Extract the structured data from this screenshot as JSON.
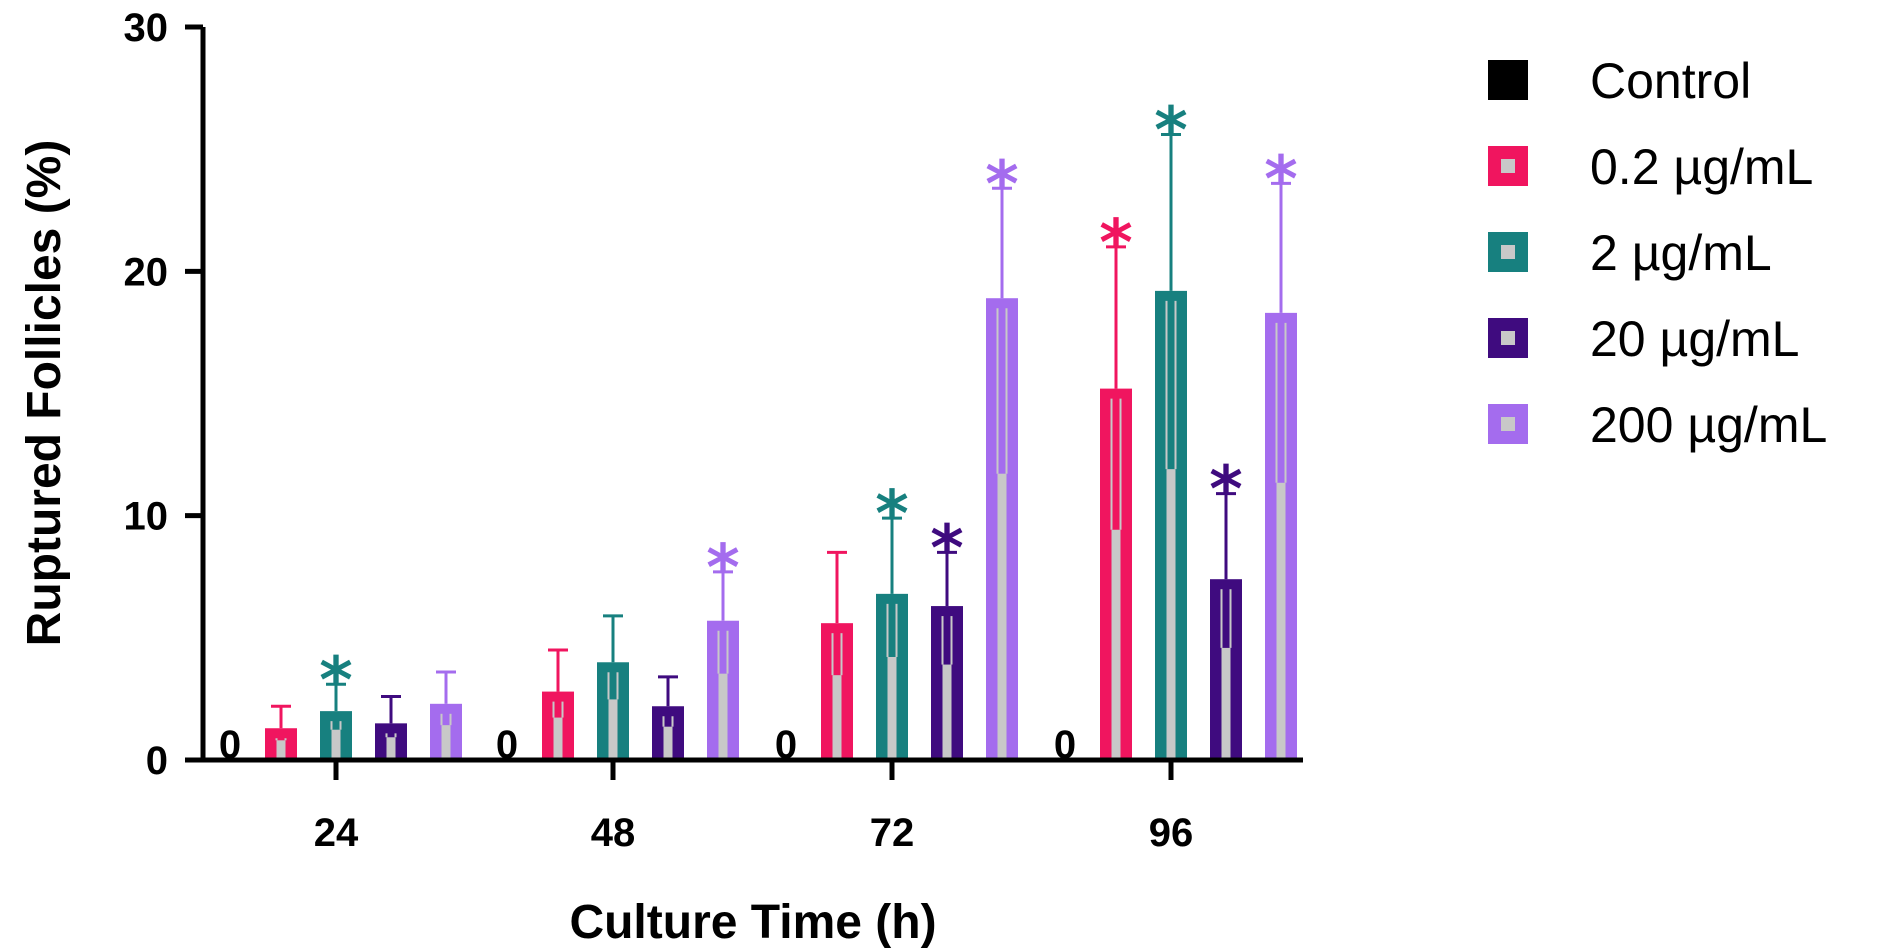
{
  "chart_data": {
    "type": "bar",
    "xlabel": "Culture Time (h)",
    "ylabel": "Ruptured Follicles (%)",
    "ylim": [
      0,
      30
    ],
    "yticks": [
      "0",
      "10",
      "20",
      "30"
    ],
    "categories": [
      "24",
      "48",
      "72",
      "96"
    ],
    "grid": false,
    "legend_position": "right",
    "series": [
      {
        "name": "Control",
        "color": "#000000",
        "values": [
          0,
          0,
          0,
          0
        ],
        "errors": [
          0,
          0,
          0,
          0
        ],
        "significant": [
          false,
          false,
          false,
          false
        ],
        "zero_label": "0"
      },
      {
        "name": "0.2 µg/mL",
        "color": "#F0155F",
        "values": [
          1.3,
          2.8,
          5.6,
          15.2
        ],
        "errors": [
          0.9,
          1.7,
          2.9,
          5.8
        ],
        "significant": [
          false,
          false,
          false,
          true
        ]
      },
      {
        "name": "2 µg/mL",
        "color": "#17807F",
        "values": [
          2.0,
          4.0,
          6.8,
          19.2
        ],
        "errors": [
          1.1,
          1.9,
          3.1,
          6.4
        ],
        "significant": [
          true,
          false,
          true,
          true
        ]
      },
      {
        "name": "20 µg/mL",
        "color": "#3F0B7F",
        "values": [
          1.5,
          2.2,
          6.3,
          7.4
        ],
        "errors": [
          1.1,
          1.2,
          2.2,
          3.5
        ],
        "significant": [
          false,
          false,
          true,
          true
        ]
      },
      {
        "name": "200 µg/mL",
        "color": "#A46CEE",
        "values": [
          2.3,
          5.7,
          18.9,
          18.3
        ],
        "errors": [
          1.3,
          2.0,
          4.5,
          5.3
        ],
        "significant": [
          false,
          true,
          true,
          true
        ]
      }
    ],
    "significance_marker": "*"
  }
}
